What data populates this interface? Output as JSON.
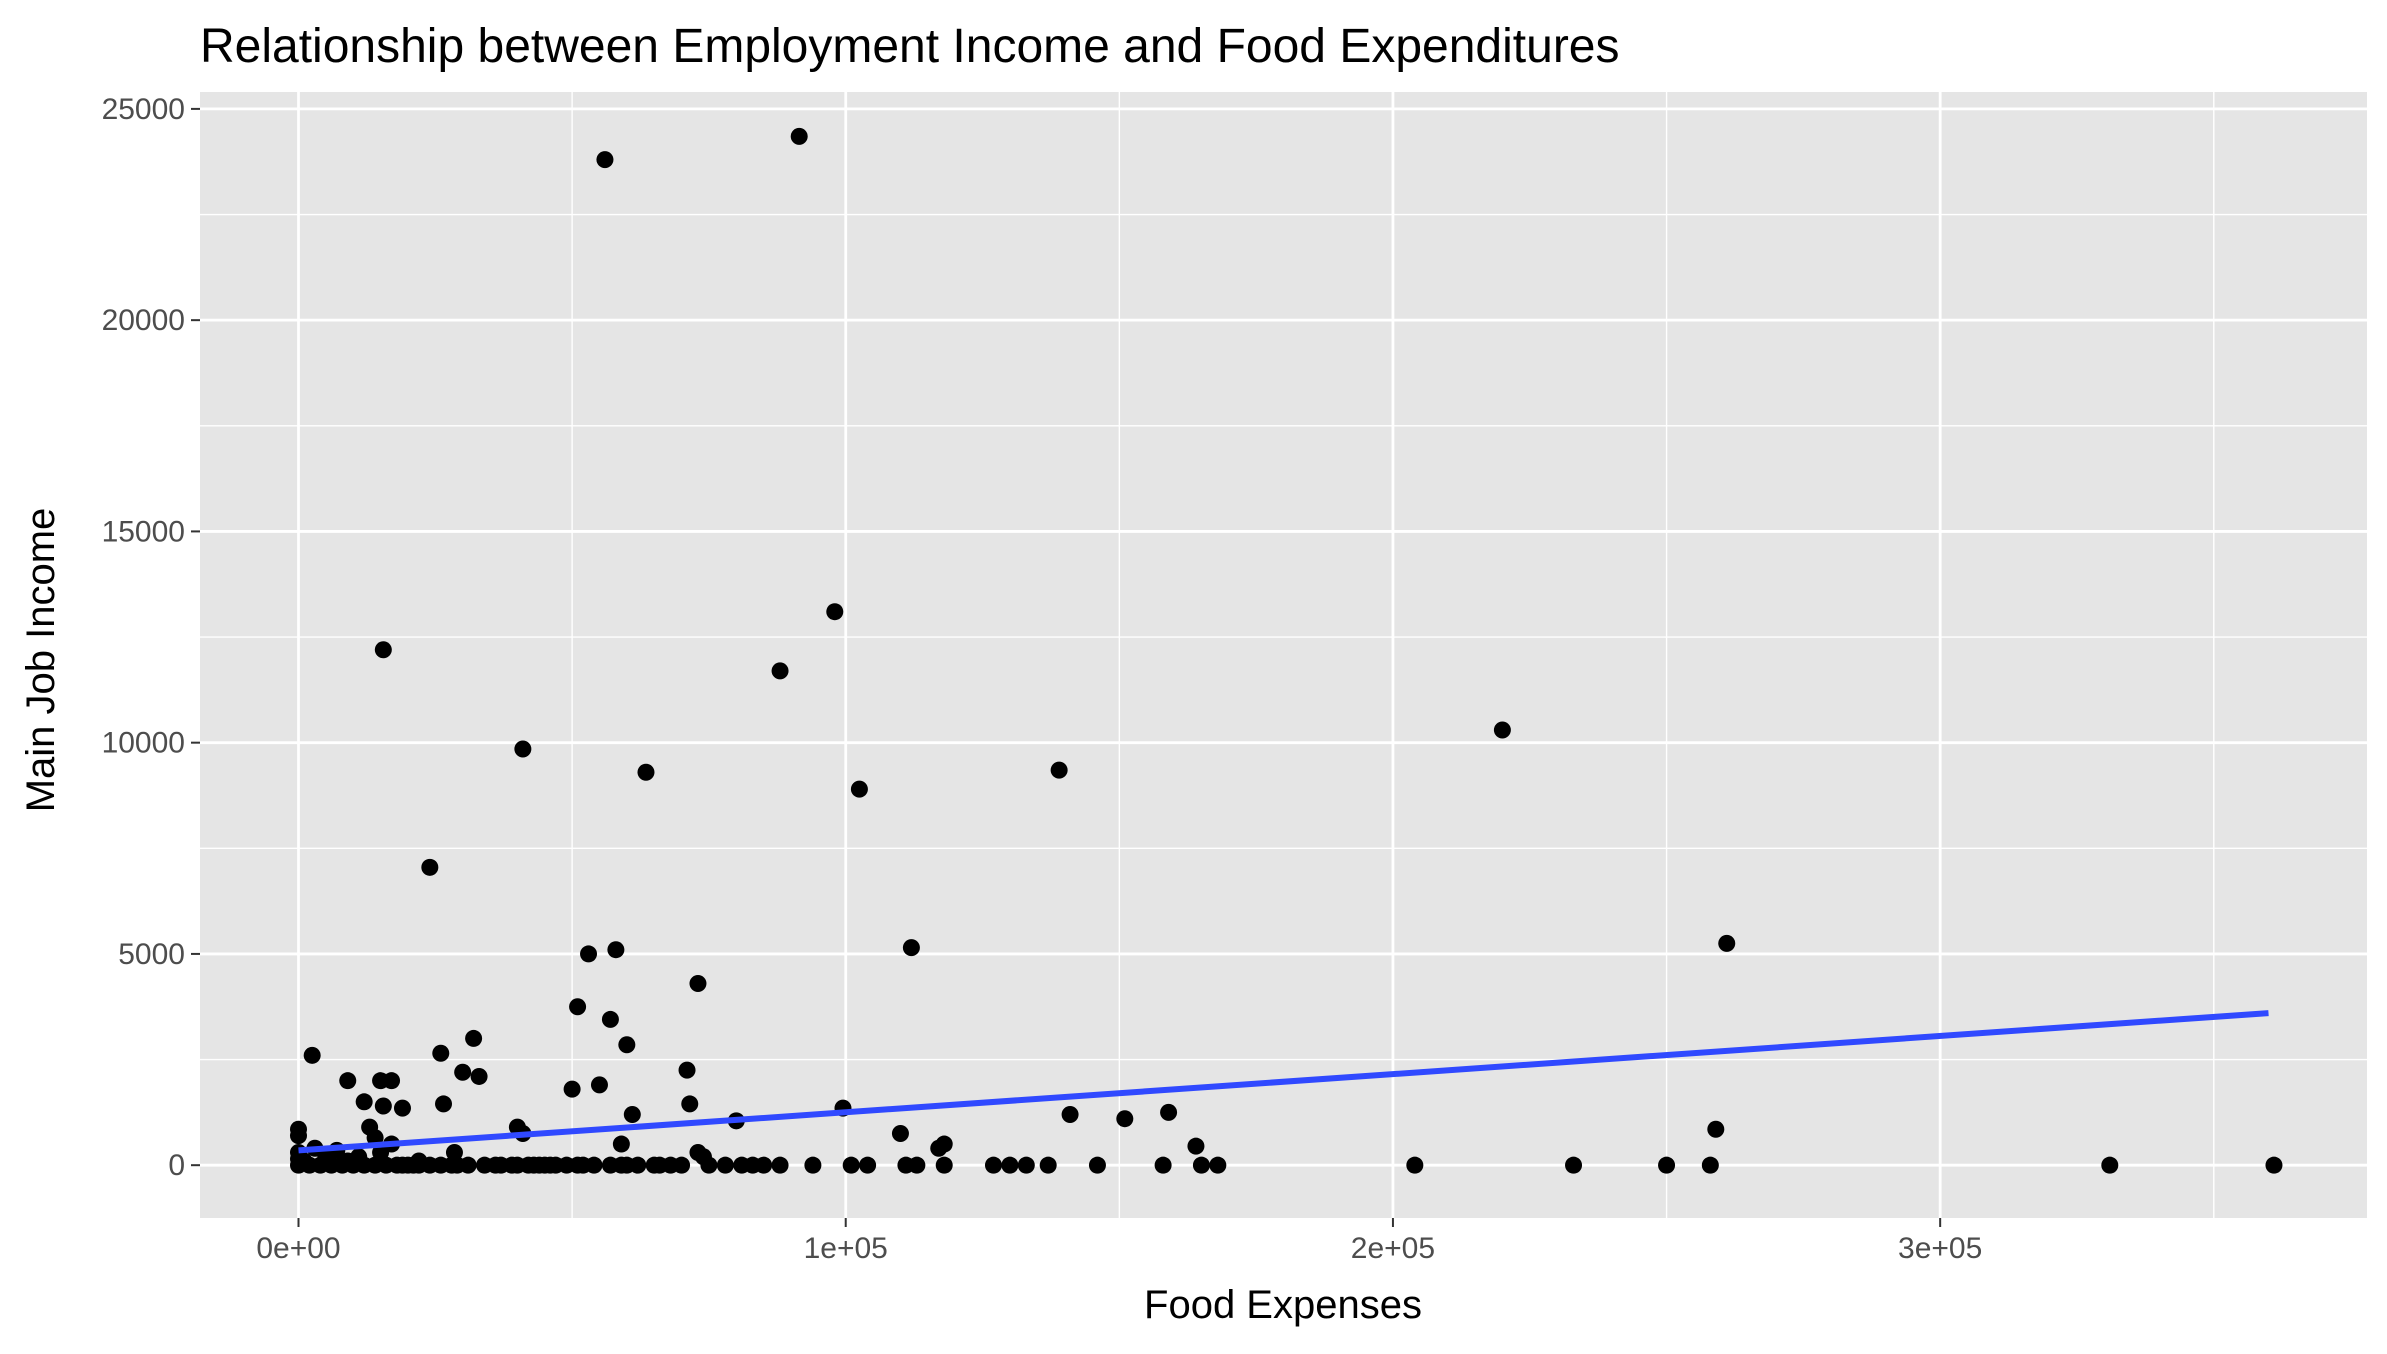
{
  "chart_data": {
    "type": "scatter",
    "title": "Relationship between Employment Income and Food Expenditures",
    "xlabel": "Food Expenses",
    "ylabel": "Main Job Income",
    "xlim": [
      -18000,
      378000
    ],
    "ylim": [
      -1250,
      25400
    ],
    "x_ticks": [
      0,
      100000,
      200000,
      300000
    ],
    "x_tick_labels": [
      "0e+00",
      "1e+05",
      "2e+05",
      "3e+05"
    ],
    "y_ticks": [
      0,
      5000,
      10000,
      15000,
      20000,
      25000
    ],
    "y_tick_labels": [
      "0",
      "5000",
      "10000",
      "15000",
      "20000",
      "25000"
    ],
    "grid": true,
    "legend": "none",
    "colors": {
      "panel_background": "#e5e5e5",
      "grid_line": "#ffffff",
      "point": "#000000",
      "trend_line": "#3049ff"
    },
    "trend_line": {
      "x": [
        0,
        360000
      ],
      "y": [
        350,
        3600
      ]
    },
    "points": [
      [
        0,
        850
      ],
      [
        0,
        700
      ],
      [
        0,
        300
      ],
      [
        0,
        150
      ],
      [
        0,
        0
      ],
      [
        1000,
        100
      ],
      [
        2000,
        0
      ],
      [
        2500,
        2600
      ],
      [
        3000,
        400
      ],
      [
        4000,
        0
      ],
      [
        5000,
        200
      ],
      [
        6000,
        0
      ],
      [
        7000,
        350
      ],
      [
        8000,
        0
      ],
      [
        9000,
        2000
      ],
      [
        9000,
        100
      ],
      [
        10000,
        0
      ],
      [
        11000,
        200
      ],
      [
        12000,
        0
      ],
      [
        12000,
        1500
      ],
      [
        13000,
        900
      ],
      [
        14000,
        650
      ],
      [
        14000,
        0
      ],
      [
        15000,
        300
      ],
      [
        15000,
        2000
      ],
      [
        15500,
        1400
      ],
      [
        15500,
        12200
      ],
      [
        16000,
        0
      ],
      [
        17000,
        2000
      ],
      [
        17000,
        500
      ],
      [
        18000,
        0
      ],
      [
        19000,
        0
      ],
      [
        19000,
        1350
      ],
      [
        20000,
        0
      ],
      [
        21000,
        0
      ],
      [
        22000,
        0
      ],
      [
        22000,
        100
      ],
      [
        24000,
        7050
      ],
      [
        24000,
        0
      ],
      [
        26000,
        0
      ],
      [
        26000,
        2650
      ],
      [
        26500,
        1450
      ],
      [
        28000,
        0
      ],
      [
        28500,
        300
      ],
      [
        29000,
        0
      ],
      [
        30000,
        2200
      ],
      [
        31000,
        0
      ],
      [
        32000,
        3000
      ],
      [
        33000,
        2100
      ],
      [
        34000,
        0
      ],
      [
        36000,
        0
      ],
      [
        37000,
        0
      ],
      [
        39000,
        0
      ],
      [
        40000,
        900
      ],
      [
        40000,
        0
      ],
      [
        41000,
        9850
      ],
      [
        41000,
        750
      ],
      [
        42000,
        0
      ],
      [
        43000,
        0
      ],
      [
        44000,
        0
      ],
      [
        45000,
        0
      ],
      [
        46000,
        0
      ],
      [
        47000,
        0
      ],
      [
        49000,
        0
      ],
      [
        50000,
        1800
      ],
      [
        51000,
        3750
      ],
      [
        51000,
        0
      ],
      [
        52000,
        0
      ],
      [
        53000,
        5000
      ],
      [
        54000,
        0
      ],
      [
        55000,
        1900
      ],
      [
        56000,
        23800
      ],
      [
        57000,
        3450
      ],
      [
        57000,
        0
      ],
      [
        58000,
        5100
      ],
      [
        59000,
        500
      ],
      [
        59000,
        0
      ],
      [
        60000,
        2850
      ],
      [
        60000,
        0
      ],
      [
        61000,
        1200
      ],
      [
        62000,
        0
      ],
      [
        63500,
        9300
      ],
      [
        65000,
        0
      ],
      [
        66000,
        0
      ],
      [
        68000,
        0
      ],
      [
        70000,
        0
      ],
      [
        71000,
        2250
      ],
      [
        71500,
        1450
      ],
      [
        73000,
        4300
      ],
      [
        73000,
        300
      ],
      [
        74000,
        200
      ],
      [
        75000,
        0
      ],
      [
        78000,
        0
      ],
      [
        80000,
        1050
      ],
      [
        81000,
        0
      ],
      [
        83000,
        0
      ],
      [
        85000,
        0
      ],
      [
        88000,
        0
      ],
      [
        88000,
        11700
      ],
      [
        91500,
        24350
      ],
      [
        94000,
        0
      ],
      [
        98000,
        13100
      ],
      [
        99500,
        1350
      ],
      [
        101000,
        0
      ],
      [
        102500,
        8900
      ],
      [
        104000,
        0
      ],
      [
        110000,
        750
      ],
      [
        111000,
        0
      ],
      [
        112000,
        5150
      ],
      [
        113000,
        0
      ],
      [
        117000,
        400
      ],
      [
        118000,
        500
      ],
      [
        118000,
        0
      ],
      [
        127000,
        0
      ],
      [
        130000,
        0
      ],
      [
        133000,
        0
      ],
      [
        137000,
        0
      ],
      [
        139000,
        9350
      ],
      [
        141000,
        1200
      ],
      [
        146000,
        0
      ],
      [
        151000,
        1100
      ],
      [
        158000,
        0
      ],
      [
        159000,
        1250
      ],
      [
        164000,
        450
      ],
      [
        165000,
        0
      ],
      [
        168000,
        0
      ],
      [
        204000,
        0
      ],
      [
        220000,
        10300
      ],
      [
        233000,
        0
      ],
      [
        250000,
        0
      ],
      [
        258000,
        0
      ],
      [
        259000,
        850
      ],
      [
        261000,
        5250
      ],
      [
        331000,
        0
      ],
      [
        361000,
        0
      ]
    ]
  }
}
